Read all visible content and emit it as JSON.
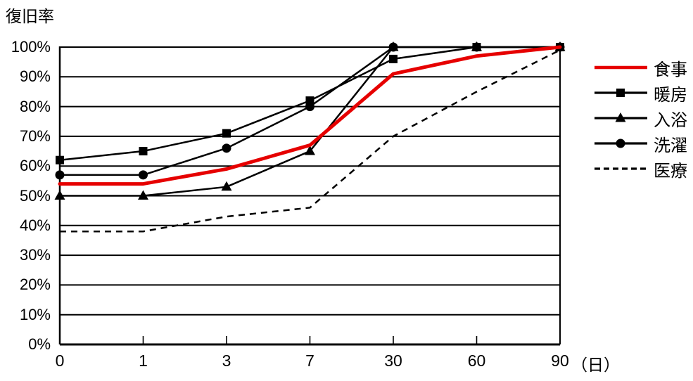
{
  "title": "復旧率",
  "y_axis": {
    "labels": [
      "100%",
      "90%",
      "80%",
      "70%",
      "60%",
      "50%",
      "40%",
      "30%",
      "20%",
      "10%",
      "0%"
    ],
    "min": 0,
    "max": 100,
    "step": 10
  },
  "x_axis": {
    "labels": [
      "0",
      "1",
      "3",
      "7",
      "30",
      "60",
      "90"
    ],
    "unit_label": "（日）"
  },
  "colors": {
    "accent_red": "#e60000",
    "line_black": "#000000"
  },
  "chart_data": {
    "type": "line",
    "title": "復旧率",
    "ylabel": "復旧率",
    "xlabel": "（日）",
    "x": [
      0,
      1,
      3,
      7,
      30,
      60,
      90
    ],
    "x_scale": "categorical",
    "ylim": [
      0,
      100
    ],
    "grid": "horizontal",
    "legend_position": "right",
    "series": [
      {
        "name": "食事",
        "key": "meals",
        "values": [
          54,
          54,
          59,
          67,
          91,
          97,
          100
        ],
        "color": "#e60000",
        "style": "solid",
        "width": 5,
        "marker": "none"
      },
      {
        "name": "暖房",
        "key": "heating",
        "values": [
          62,
          65,
          71,
          82,
          96,
          100,
          100
        ],
        "color": "#000000",
        "style": "solid",
        "width": 2.5,
        "marker": "square"
      },
      {
        "name": "入浴",
        "key": "bathing",
        "values": [
          50,
          50,
          53,
          65,
          100,
          100,
          100
        ],
        "color": "#000000",
        "style": "solid",
        "width": 2.5,
        "marker": "triangle"
      },
      {
        "name": "洗濯",
        "key": "laundry",
        "values": [
          57,
          57,
          66,
          80,
          100,
          100,
          100
        ],
        "color": "#000000",
        "style": "solid",
        "width": 2.5,
        "marker": "circle"
      },
      {
        "name": "医療",
        "key": "medical",
        "values": [
          38,
          38,
          43,
          46,
          70,
          85,
          99
        ],
        "color": "#000000",
        "style": "dashed",
        "width": 2.5,
        "marker": "none"
      }
    ]
  }
}
